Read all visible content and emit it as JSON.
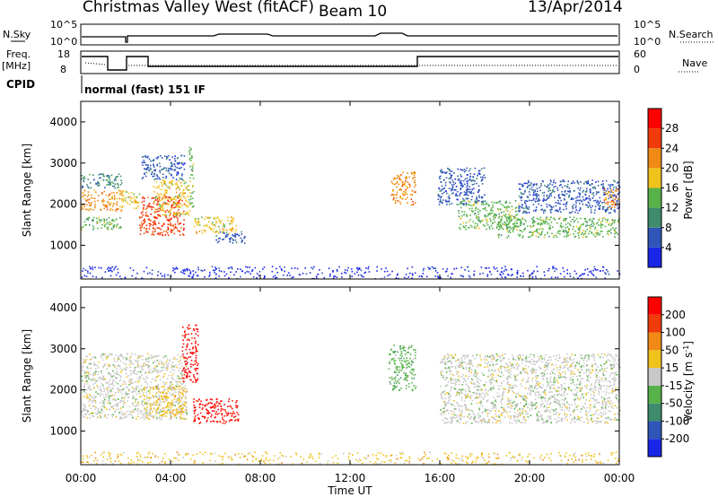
{
  "header": {
    "station": "Christmas Valley West (fitACF)",
    "beam": "Beam 10",
    "date": "13/Apr/2014"
  },
  "status_panel": {
    "left_labels": [
      "N.Sky",
      "Freq.",
      "[MHz]",
      "CPID"
    ],
    "right_labels": [
      "N.Search",
      "Nave"
    ],
    "nsky_ticks": [
      "10^5",
      "10^0"
    ],
    "nsearch_ticks": [
      "10^5",
      "10^0"
    ],
    "freq_ticks": [
      "18",
      "8"
    ],
    "nave_ticks": [
      "60",
      "0"
    ],
    "cpid_text": "normal (fast) 151 IF"
  },
  "chart_data": [
    {
      "type": "heatmap",
      "name": "power",
      "ylabel": "Slant Range [km]",
      "yticks": [
        1000,
        2000,
        3000,
        4000
      ],
      "ylim": [
        180,
        4500
      ],
      "xlim": [
        0,
        24
      ],
      "colorbar": {
        "label": "Power [dB]",
        "ticks": [
          "4",
          "8",
          "12",
          "16",
          "20",
          "24",
          "28"
        ],
        "colors": [
          "#1a26e6",
          "#2f55b8",
          "#3e8b6e",
          "#58b24a",
          "#f0c21c",
          "#f08a14",
          "#f03c0a",
          "#ff0000"
        ]
      },
      "bands": [
        {
          "t0": 0.0,
          "t1": 1.8,
          "r0": 1850,
          "r1": 2350,
          "level": 5
        },
        {
          "t0": 0.0,
          "t1": 1.8,
          "r0": 1400,
          "r1": 1700,
          "level": 3
        },
        {
          "t0": 0.0,
          "t1": 1.8,
          "r0": 2400,
          "r1": 2750,
          "level": 2
        },
        {
          "t0": 1.8,
          "t1": 2.6,
          "r0": 1900,
          "r1": 2350,
          "level": 4
        },
        {
          "t0": 2.6,
          "t1": 4.6,
          "r0": 1250,
          "r1": 2200,
          "level": 6
        },
        {
          "t0": 3.2,
          "t1": 4.9,
          "r0": 1750,
          "r1": 2600,
          "level": 4
        },
        {
          "t0": 2.7,
          "t1": 4.6,
          "r0": 2600,
          "r1": 3200,
          "level": 1
        },
        {
          "t0": 4.8,
          "t1": 5.0,
          "r0": 1900,
          "r1": 3400,
          "level": 3
        },
        {
          "t0": 5.0,
          "t1": 6.9,
          "r0": 1300,
          "r1": 1700,
          "level": 4
        },
        {
          "t0": 6.0,
          "t1": 7.3,
          "r0": 1050,
          "r1": 1350,
          "level": 1
        },
        {
          "t0": 13.8,
          "t1": 14.9,
          "r0": 2000,
          "r1": 2800,
          "level": 5
        },
        {
          "t0": 15.9,
          "t1": 18.0,
          "r0": 2000,
          "r1": 2900,
          "level": 1
        },
        {
          "t0": 16.8,
          "t1": 19.5,
          "r0": 1400,
          "r1": 2100,
          "level": 3
        },
        {
          "t0": 18.5,
          "t1": 24.0,
          "r0": 1200,
          "r1": 1700,
          "level": 3
        },
        {
          "t0": 19.5,
          "t1": 24.0,
          "r0": 1800,
          "r1": 2600,
          "level": 1
        },
        {
          "t0": 23.3,
          "t1": 24.0,
          "r0": 1900,
          "r1": 2400,
          "level": 5
        },
        {
          "t0": 0.0,
          "t1": 24.0,
          "r0": 200,
          "r1": 500,
          "level": 0
        }
      ]
    },
    {
      "type": "heatmap",
      "name": "velocity",
      "ylabel": "Slant Range [km]",
      "xlabel": "Time UT",
      "xticks": [
        "00:00",
        "04:00",
        "08:00",
        "12:00",
        "16:00",
        "20:00",
        "00:00"
      ],
      "yticks": [
        1000,
        2000,
        3000,
        4000
      ],
      "ylim": [
        180,
        4500
      ],
      "xlim": [
        0,
        24
      ],
      "colorbar": {
        "label": "Velocity [m s",
        "label_sup": "-1",
        "label_end": "]",
        "ticks": [
          "200",
          "100",
          "50",
          "15",
          "-15",
          "-50",
          "-100",
          "-200"
        ],
        "colors": [
          "#1a26e6",
          "#2f55b8",
          "#3e8b6e",
          "#58b24a",
          "#c8c8c8",
          "#f0c21c",
          "#f08a14",
          "#f03c0a",
          "#ff0000"
        ]
      },
      "bands": [
        {
          "t0": 0.0,
          "t1": 4.7,
          "r0": 1300,
          "r1": 2900,
          "level": 4
        },
        {
          "t0": 2.8,
          "t1": 4.7,
          "r0": 1300,
          "r1": 2100,
          "level": 5
        },
        {
          "t0": 4.5,
          "t1": 5.2,
          "r0": 2200,
          "r1": 3600,
          "level": 8
        },
        {
          "t0": 5.0,
          "t1": 7.0,
          "r0": 1200,
          "r1": 1800,
          "level": 8
        },
        {
          "t0": 13.7,
          "t1": 14.9,
          "r0": 2000,
          "r1": 3100,
          "level": 3
        },
        {
          "t0": 16.0,
          "t1": 24.0,
          "r0": 1200,
          "r1": 2900,
          "level": 4
        },
        {
          "t0": 0.0,
          "t1": 24.0,
          "r0": 200,
          "r1": 500,
          "level": 5
        }
      ]
    }
  ]
}
